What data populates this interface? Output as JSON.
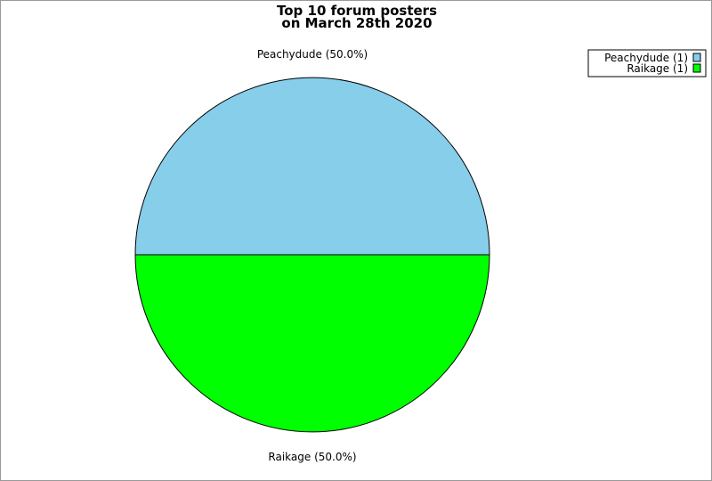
{
  "chart_data": {
    "type": "pie",
    "title": [
      "Top 10 forum posters",
      "on March 28th 2020"
    ],
    "slices": [
      {
        "label": "Peachydude",
        "value": 1,
        "percent_label": "Peachydude (50.0%)",
        "legend_label": "Peachydude (1)",
        "color": "#87ceeb"
      },
      {
        "label": "Raikage",
        "value": 1,
        "percent_label": "Raikage (50.0%)",
        "legend_label": "Raikage (1)",
        "color": "#00ff00"
      }
    ],
    "legend": "top-right"
  }
}
